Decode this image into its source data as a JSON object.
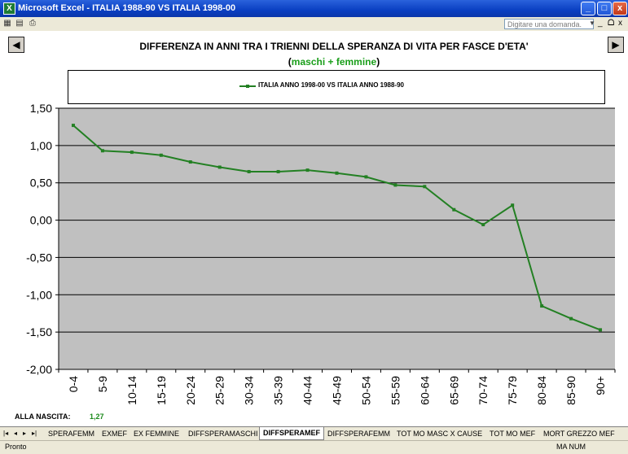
{
  "window": {
    "title": "Microsoft Excel - ITALIA 1988-90 VS ITALIA 1998-00",
    "ask_placeholder": "Digitare una domanda.",
    "minimize": "_",
    "maximize": "□",
    "close": "x",
    "doc_minimize": "_",
    "doc_restore": "ᗝ",
    "doc_close": "x"
  },
  "nav": {
    "prev": "◀",
    "next": "▶"
  },
  "chart_data": {
    "type": "line",
    "title": "DIFFERENZA IN ANNI TRA I TRIENNI DELLA SPERANZA DI VITA PER FASCE D'ETA'",
    "subtitle_open": "(",
    "subtitle_highlight": "maschi + femmine",
    "subtitle_close": ")",
    "categories": [
      "0-4",
      "5-9",
      "10-14",
      "15-19",
      "20-24",
      "25-29",
      "30-34",
      "35-39",
      "40-44",
      "45-49",
      "50-54",
      "55-59",
      "60-64",
      "65-69",
      "70-74",
      "75-79",
      "80-84",
      "85-90",
      "90+"
    ],
    "series": [
      {
        "name": "ITALIA ANNO 1998-00 VS ITALIA ANNO 1988-90",
        "color": "#238023",
        "values": [
          1.27,
          0.93,
          0.91,
          0.87,
          0.78,
          0.71,
          0.65,
          0.65,
          0.67,
          0.63,
          0.58,
          0.47,
          0.45,
          0.14,
          -0.06,
          0.2,
          -1.15,
          -1.32,
          -1.47
        ]
      }
    ],
    "y_ticks": [
      "1,50",
      "1,00",
      "0,50",
      "0,00",
      "-0,50",
      "-1,00",
      "-1,50",
      "-2,00"
    ],
    "ylim": [
      -2.0,
      1.5
    ],
    "grid": true,
    "plot_background": "#c0c0c0",
    "legend_position": "top"
  },
  "birth": {
    "label": "ALLA NASCITA:",
    "value": "1,27"
  },
  "tabs": {
    "items": [
      "SPERAFEMM",
      "EXMEF",
      "EX FEMMINE",
      "DIFFSPERAMASCHI",
      "DIFFSPERAMEF",
      "DIFFSPERAFEMM",
      "TOT MO MASC X CAUSE",
      "TOT MO MEF",
      "MORT GREZZO MEF"
    ],
    "active": "DIFFSPERAMEF"
  },
  "status": {
    "left": "Pronto",
    "right": "MA  NUM"
  }
}
